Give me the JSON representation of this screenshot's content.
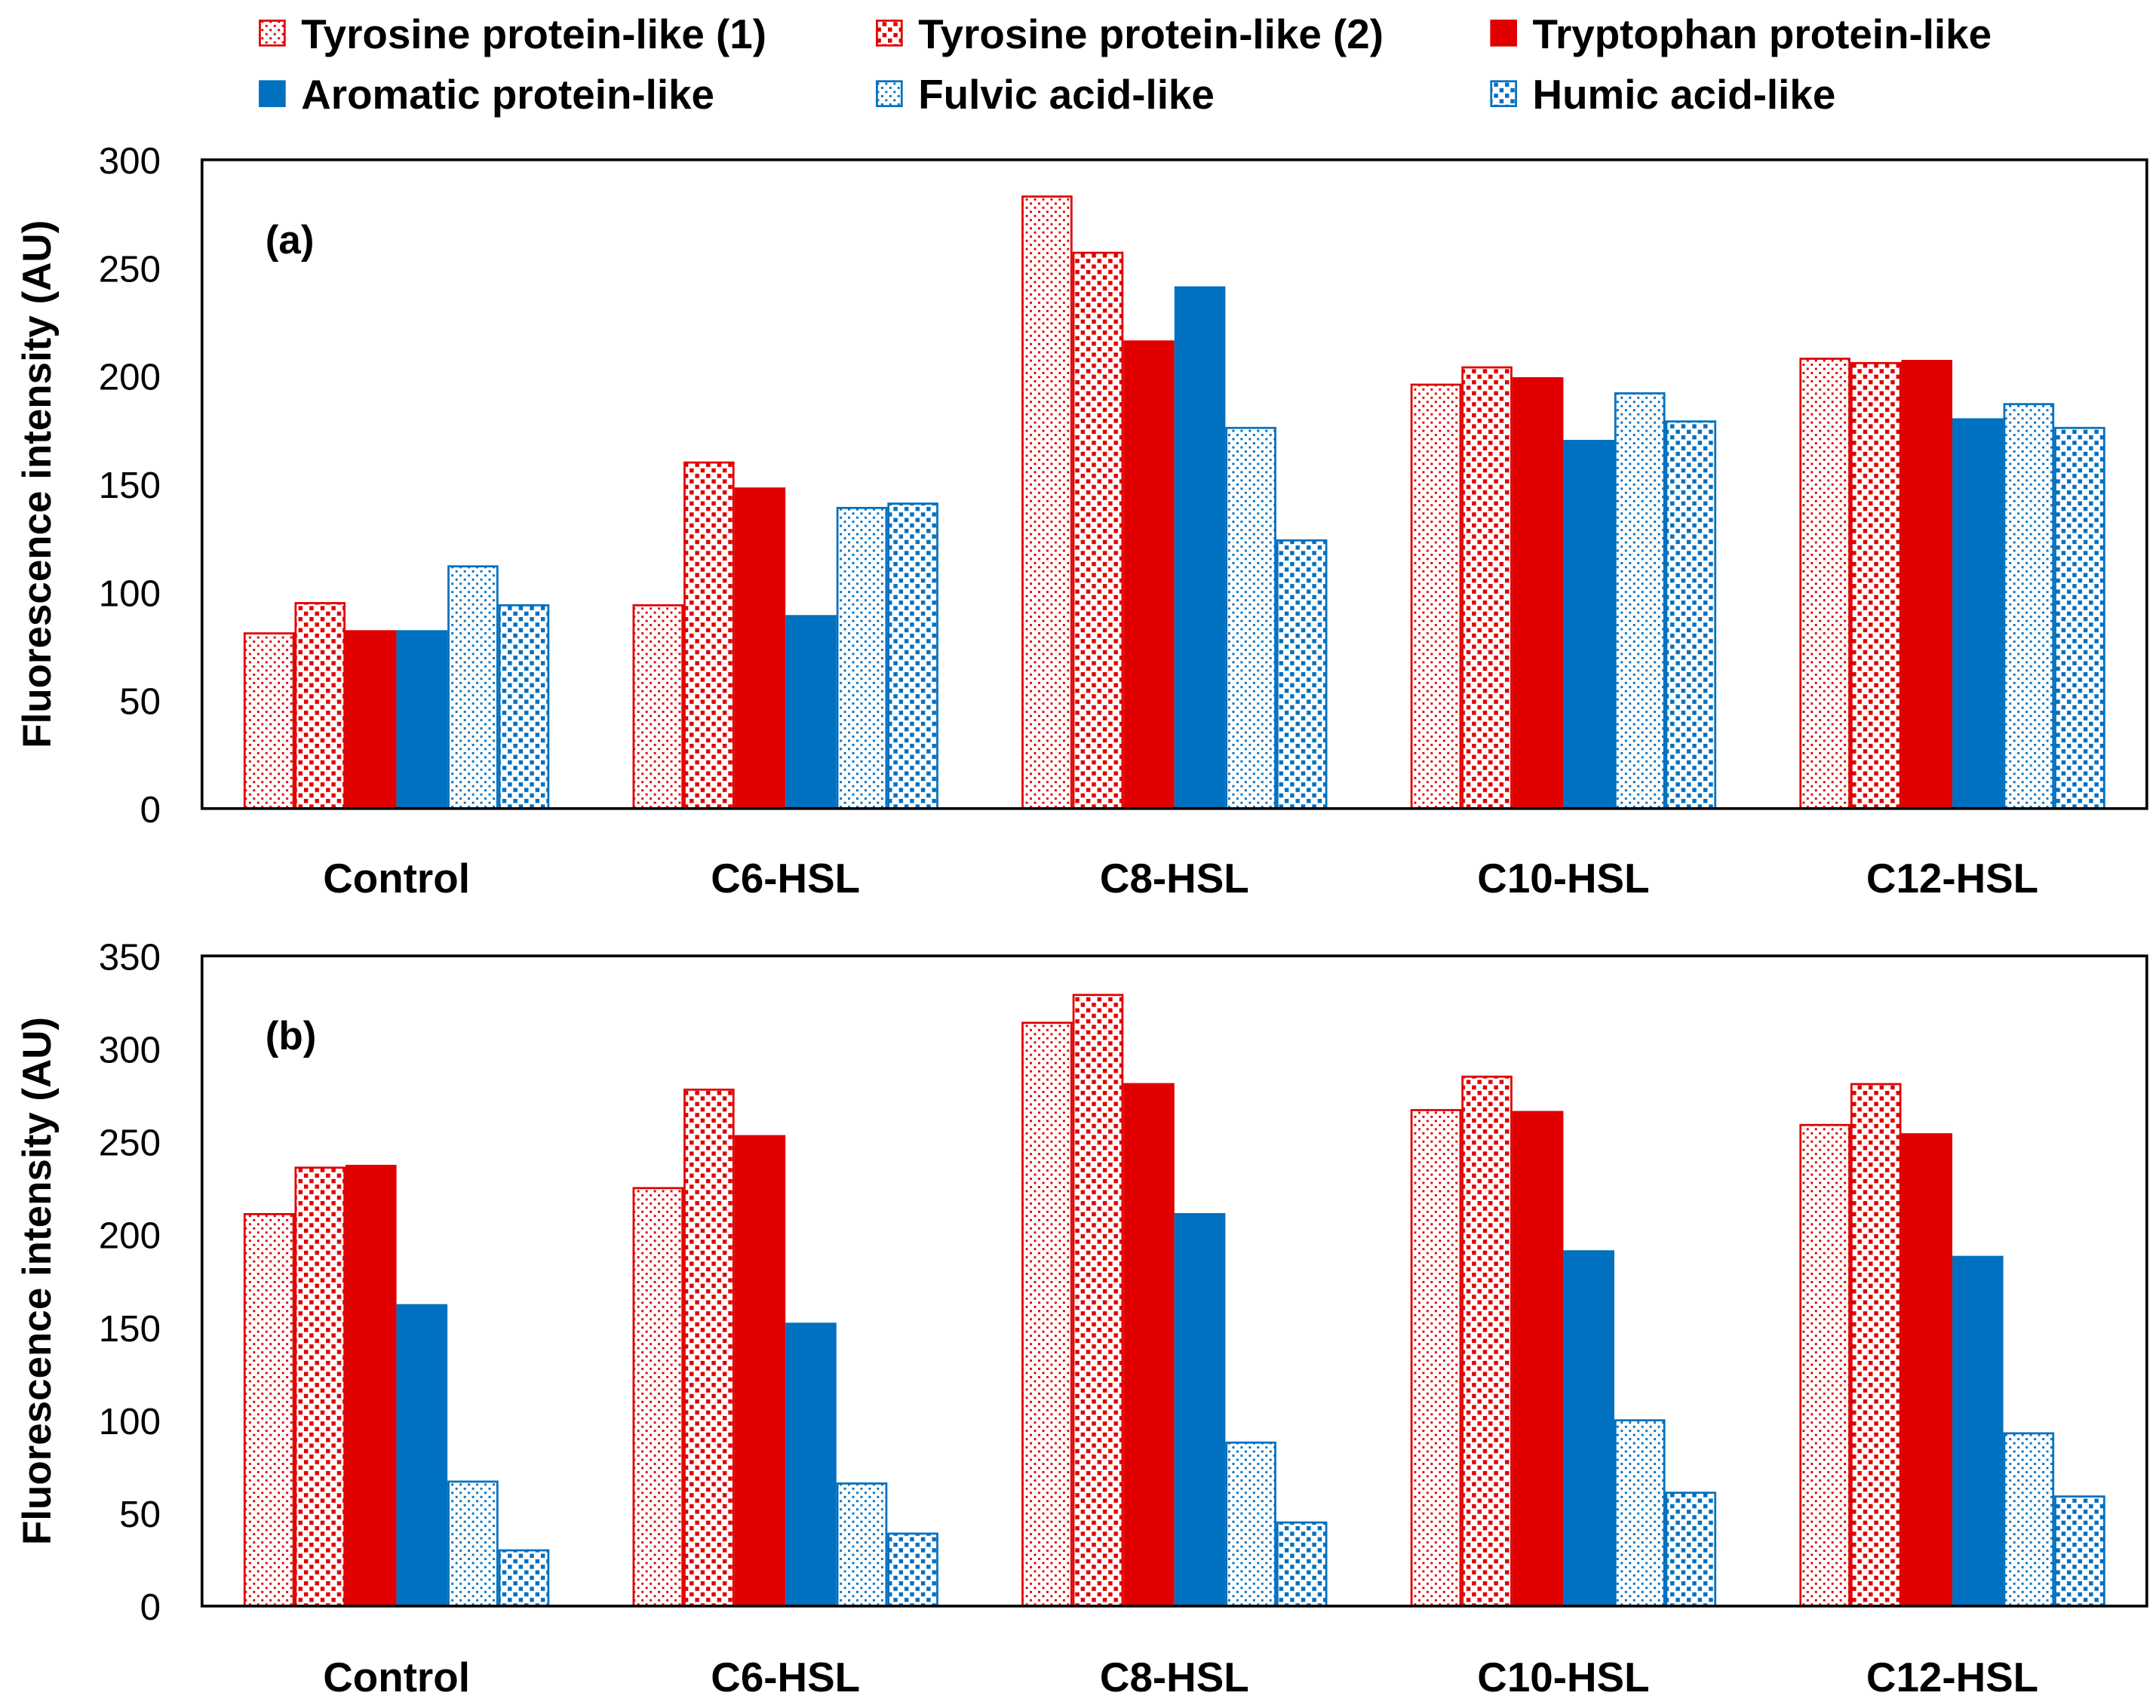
{
  "legend": [
    "Tyrosine protein-like (1)",
    "Tyrosine protein-like (2)",
    "Tryptophan protein-like",
    "Aromatic protein-like",
    "Fulvic acid-like",
    "Humic acid-like"
  ],
  "colors": {
    "red": "#E00000",
    "blue": "#0070C0"
  },
  "series_styles": [
    "red-fine-dots",
    "red-coarse-dots",
    "red-solid",
    "blue-solid",
    "blue-fine-dots",
    "blue-coarse-dots"
  ],
  "chart_data": [
    {
      "type": "bar",
      "panel_label": "(a)",
      "ylabel": "Fluorescence intensity (AU)",
      "ylim": [
        0,
        300
      ],
      "yticks": [
        0,
        50,
        100,
        150,
        200,
        250,
        300
      ],
      "categories": [
        "Control",
        "C6-HSL",
        "C8-HSL",
        "C10-HSL",
        "C12-HSL"
      ],
      "series": [
        {
          "name": "Tyrosine protein-like (1)",
          "values": [
            81,
            94,
            283,
            196,
            208
          ]
        },
        {
          "name": "Tyrosine protein-like (2)",
          "values": [
            95,
            160,
            257,
            204,
            206
          ]
        },
        {
          "name": "Tryptophan protein-like",
          "values": [
            82,
            148,
            216,
            199,
            207
          ]
        },
        {
          "name": "Aromatic protein-like",
          "values": [
            82,
            89,
            241,
            170,
            180
          ]
        },
        {
          "name": "Fulvic acid-like",
          "values": [
            112,
            139,
            176,
            192,
            187
          ]
        },
        {
          "name": "Humic acid-like",
          "values": [
            94,
            141,
            124,
            179,
            176
          ]
        }
      ],
      "grid": false
    },
    {
      "type": "bar",
      "panel_label": "(b)",
      "ylabel": "Fluorescence intensity (AU)",
      "ylim": [
        0,
        350
      ],
      "yticks": [
        0,
        50,
        100,
        150,
        200,
        250,
        300,
        350
      ],
      "categories": [
        "Control",
        "C6-HSL",
        "C8-HSL",
        "C10-HSL",
        "C12-HSL"
      ],
      "series": [
        {
          "name": "Tyrosine protein-like (1)",
          "values": [
            211,
            225,
            314,
            267,
            259
          ]
        },
        {
          "name": "Tyrosine protein-like (2)",
          "values": [
            236,
            278,
            329,
            285,
            281
          ]
        },
        {
          "name": "Tryptophan protein-like",
          "values": [
            237,
            253,
            281,
            266,
            254
          ]
        },
        {
          "name": "Aromatic protein-like",
          "values": [
            162,
            152,
            211,
            191,
            188
          ]
        },
        {
          "name": "Fulvic acid-like",
          "values": [
            67,
            66,
            88,
            100,
            93
          ]
        },
        {
          "name": "Humic acid-like",
          "values": [
            30,
            39,
            45,
            61,
            59
          ]
        }
      ],
      "grid": false
    }
  ]
}
